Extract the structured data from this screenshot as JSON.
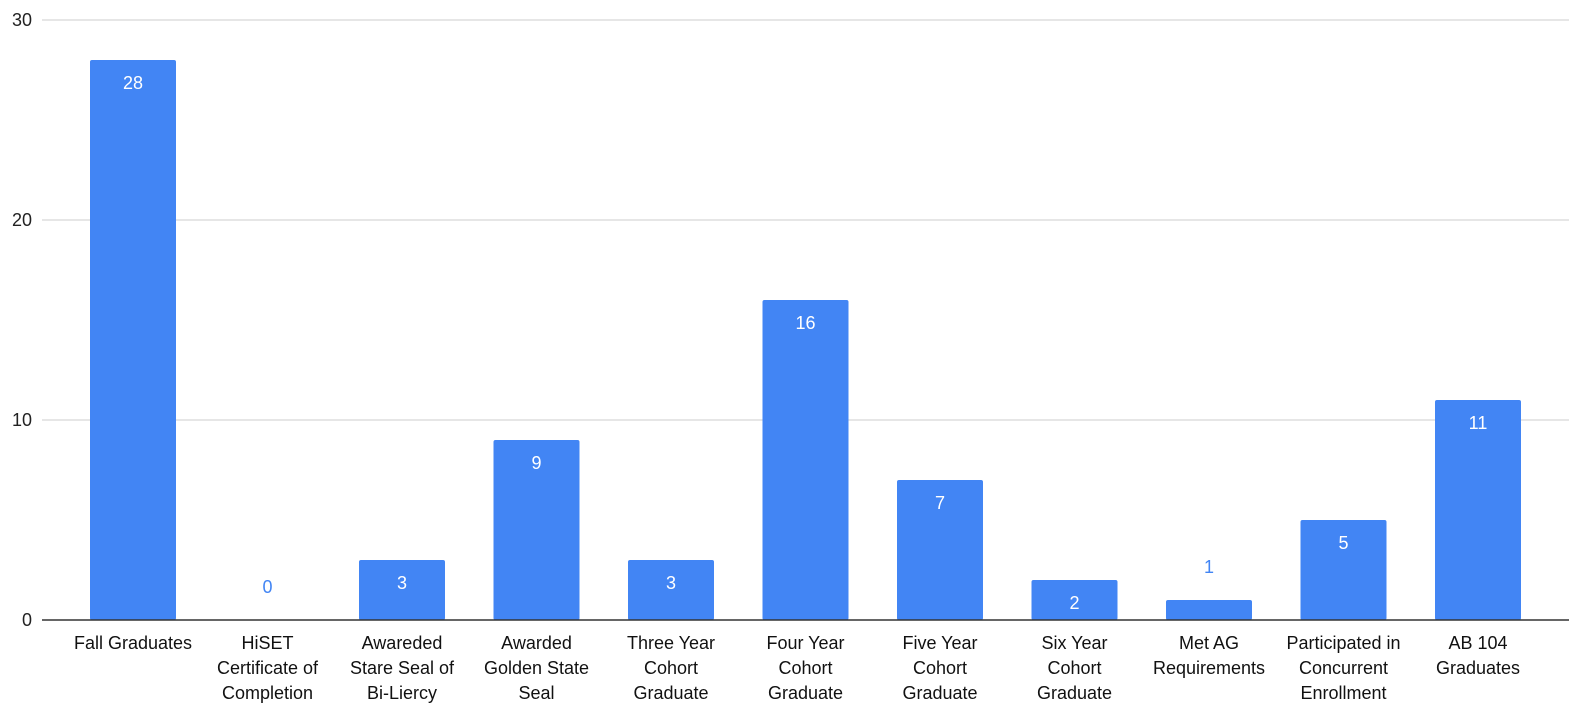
{
  "chart_data": {
    "type": "bar",
    "title": "",
    "xlabel": "",
    "ylabel": "",
    "ylim": [
      0,
      30
    ],
    "yticks": [
      0,
      10,
      20,
      30
    ],
    "grid": true,
    "legend": "none",
    "bar_color": "#4285f4",
    "inside_label_color": "#ffffff",
    "outside_label_color": "#4285f4",
    "categories": [
      [
        "Fall Graduates"
      ],
      [
        "HiSET",
        "Certificate of",
        "Completion"
      ],
      [
        "Awareded",
        "Stare Seal of",
        "Bi-Liercy"
      ],
      [
        "Awarded",
        "Golden State",
        "Seal"
      ],
      [
        "Three Year",
        "Cohort",
        "Graduate"
      ],
      [
        "Four Year",
        "Cohort",
        "Graduate"
      ],
      [
        "Five Year",
        "Cohort",
        "Graduate"
      ],
      [
        "Six Year",
        "Cohort",
        "Graduate"
      ],
      [
        "Met AG",
        "Requirements"
      ],
      [
        "Participated in",
        "Concurrent",
        "Enrollment"
      ],
      [
        "AB 104",
        "Graduates"
      ]
    ],
    "values": [
      28,
      0,
      3,
      9,
      3,
      16,
      7,
      2,
      1,
      5,
      11
    ]
  }
}
